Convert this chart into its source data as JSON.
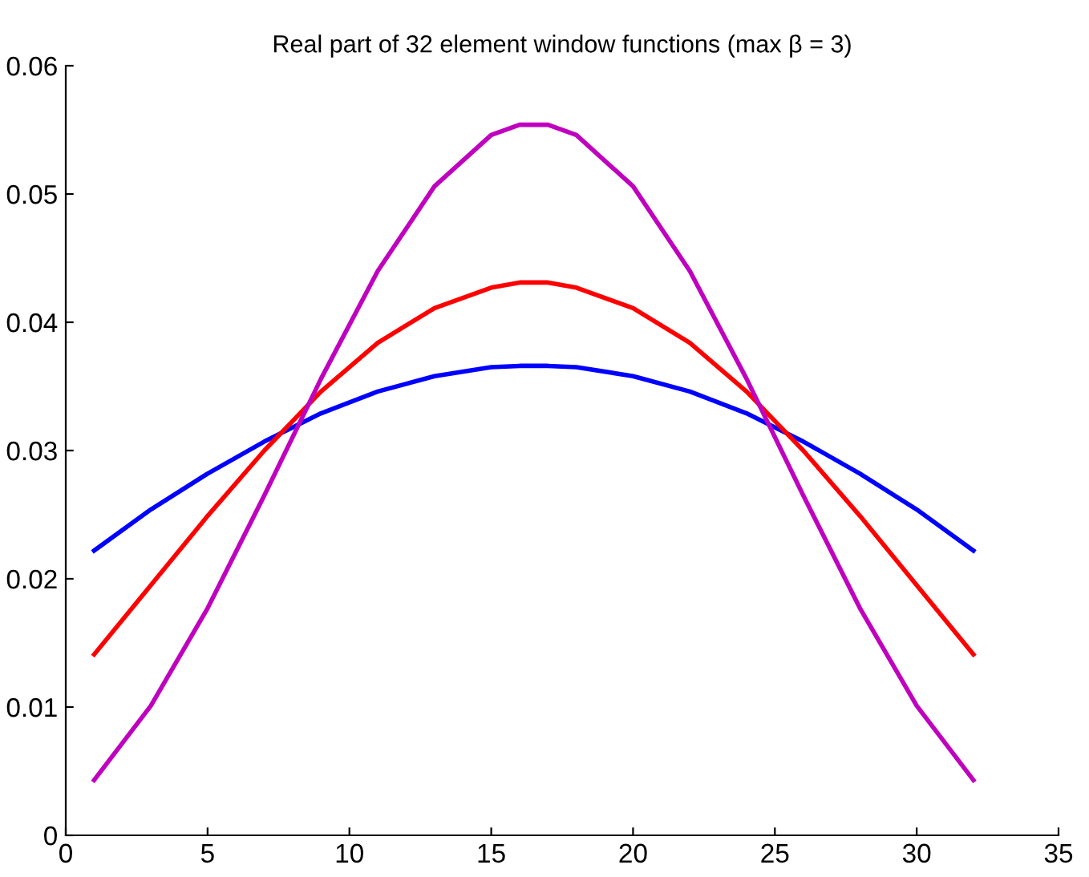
{
  "chart_data": {
    "type": "line",
    "title": "Real part of 32 element window functions (max β = 3)",
    "x": [
      1,
      3,
      5,
      7,
      9,
      11,
      13,
      15,
      16,
      17,
      18,
      20,
      22,
      24,
      26,
      28,
      30,
      32
    ],
    "series": [
      {
        "color": "#0000ff",
        "values": [
          0.0222,
          0.0254,
          0.0282,
          0.0307,
          0.0329,
          0.0346,
          0.0358,
          0.0365,
          0.0366,
          0.0366,
          0.0365,
          0.0358,
          0.0346,
          0.0329,
          0.0307,
          0.0282,
          0.0254,
          0.0222
        ]
      },
      {
        "color": "#ff0000",
        "values": [
          0.0141,
          0.0195,
          0.0249,
          0.03,
          0.0346,
          0.0384,
          0.0411,
          0.0427,
          0.0431,
          0.0431,
          0.0427,
          0.0411,
          0.0384,
          0.0346,
          0.03,
          0.0249,
          0.0195,
          0.0141
        ]
      },
      {
        "color": "#bf00bf",
        "values": [
          0.0043,
          0.0101,
          0.0177,
          0.0265,
          0.0356,
          0.044,
          0.0506,
          0.0546,
          0.0554,
          0.0554,
          0.0546,
          0.0506,
          0.044,
          0.0356,
          0.0265,
          0.0177,
          0.0101,
          0.0043
        ]
      }
    ],
    "xlim": [
      0,
      35
    ],
    "xticks": [
      0,
      5,
      10,
      15,
      20,
      25,
      30,
      35
    ],
    "ylim": [
      0,
      0.06
    ],
    "yticks": [
      0,
      0.01,
      0.02,
      0.03,
      0.04,
      0.05,
      0.06
    ],
    "grid": false,
    "legend": false,
    "marker": "none",
    "line_style": "solid"
  }
}
